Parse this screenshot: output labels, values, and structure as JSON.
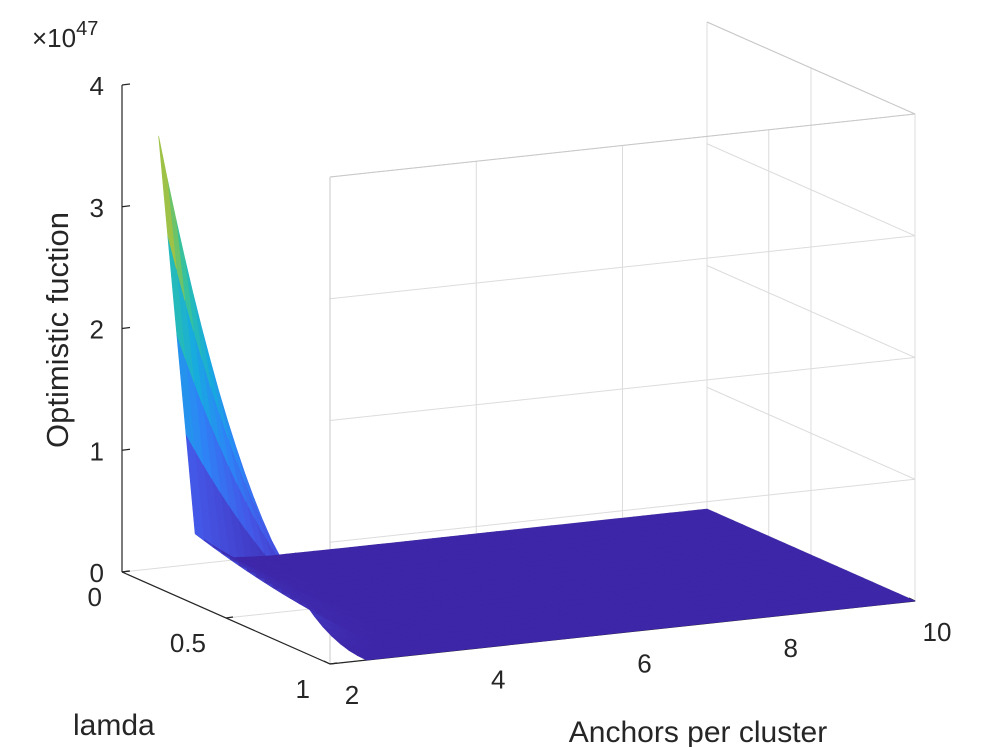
{
  "chart_data": {
    "type": "surface",
    "title": "",
    "xlabel": "Anchors per cluster",
    "ylabel": "lamda",
    "zlabel": "Optimistic fuction",
    "z_multiplier_label": "×10",
    "z_multiplier_exponent": "47",
    "xlim": [
      2,
      10
    ],
    "ylim": [
      0,
      1
    ],
    "zlim": [
      0,
      4
    ],
    "x_ticks": [
      2,
      4,
      6,
      8,
      10
    ],
    "y_ticks": [
      0,
      0.5,
      1
    ],
    "z_ticks": [
      0,
      1,
      2,
      3,
      4
    ],
    "x_tick_labels": [
      "2",
      "4",
      "6",
      "8",
      "10"
    ],
    "y_tick_labels": [
      "0",
      "0.5",
      "1"
    ],
    "z_tick_labels": [
      "0",
      "1",
      "2",
      "3",
      "4"
    ],
    "x_data_range": [
      2.5,
      10
    ],
    "y_data_range": [
      0,
      1
    ],
    "surface_profile": {
      "x": [
        2.5,
        3,
        3.5,
        4,
        5,
        6,
        7,
        8,
        9,
        10
      ],
      "z_at_lamda_0": [
        3.55,
        0.25,
        0.02,
        0.002,
        0,
        0,
        0,
        0,
        0,
        0
      ],
      "lamda_dependence": "z decreases to ~0 as lamda goes from 0 to 1"
    },
    "colormap": "parula",
    "grid": true,
    "legend": "none"
  }
}
